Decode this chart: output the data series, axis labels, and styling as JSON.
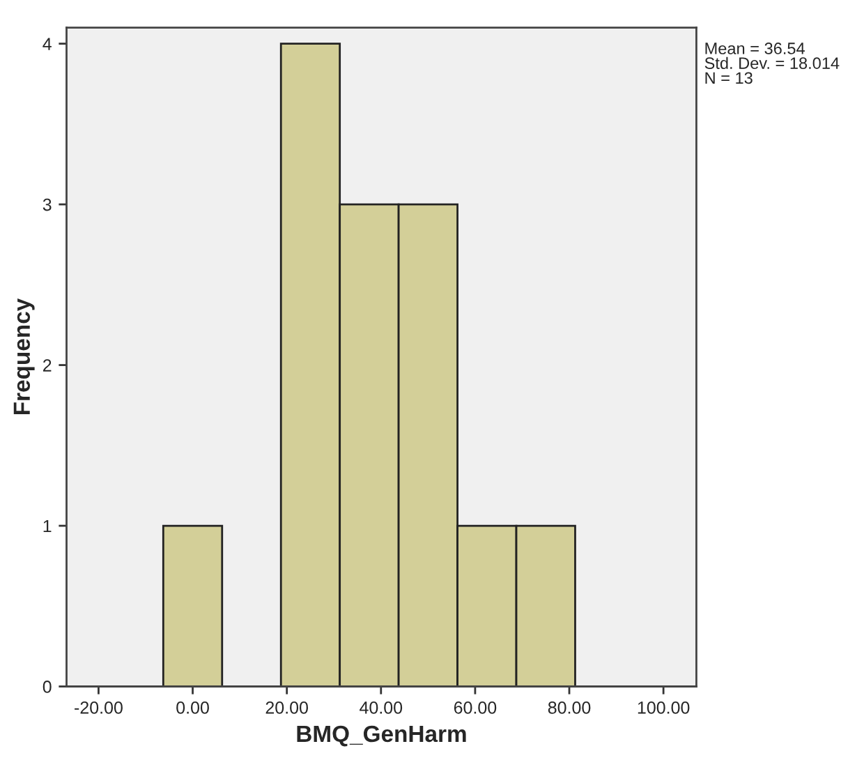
{
  "chart_data": {
    "type": "histogram",
    "xlabel": "BMQ_GenHarm",
    "ylabel": "Frequency",
    "bins": [
      -6.25,
      6.25,
      18.75,
      31.25,
      43.75,
      56.25,
      68.75,
      81.25
    ],
    "values": [
      1,
      0,
      4,
      3,
      3,
      1,
      1
    ],
    "color": "#d3cf98",
    "xlim": [
      -26.8,
      107
    ],
    "xticks": [
      {
        "value": -20,
        "label": "-20.00"
      },
      {
        "value": 0,
        "label": "0.00"
      },
      {
        "value": 20,
        "label": "20.00"
      },
      {
        "value": 40,
        "label": "40.00"
      },
      {
        "value": 60,
        "label": "60.00"
      },
      {
        "value": 80,
        "label": "80.00"
      },
      {
        "value": 100,
        "label": "100.00"
      }
    ],
    "ylim": [
      0,
      4.1
    ],
    "yticks": [
      0,
      1,
      2,
      3,
      4
    ],
    "grid": false,
    "annotations": [
      "Mean = 36.54\nStd. Dev. = 18.014\nN = 13"
    ]
  }
}
